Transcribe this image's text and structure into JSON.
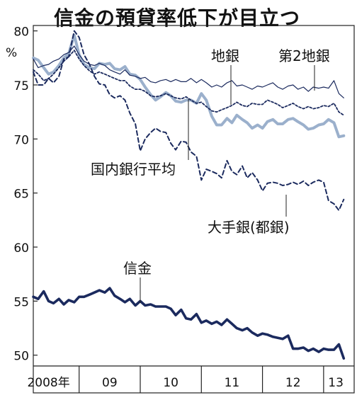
{
  "chart_data": {
    "type": "line",
    "title": "信金の預貸率低下が目立つ",
    "unit": "%",
    "ylim": [
      49,
      80.5
    ],
    "yticks": [
      50,
      55,
      60,
      65,
      70,
      75,
      80
    ],
    "x_start": 2008.25,
    "x_end": 2013.5,
    "x_ticks": [
      {
        "label": "2008年",
        "center": 2008.5
      },
      {
        "label": "09",
        "center": 2009.5
      },
      {
        "label": "10",
        "center": 2010.5
      },
      {
        "label": "11",
        "center": 2011.5
      },
      {
        "label": "12",
        "center": 2012.5
      },
      {
        "label": "13",
        "center": 2013.2
      }
    ],
    "year_boundaries": [
      2009,
      2010,
      2011,
      2012,
      2013
    ],
    "labels": {
      "shinkin": "信金",
      "chigin": "地銀",
      "daini_chigin": "第2地銀",
      "kokunai": "国内銀行平均",
      "ote": "大手銀(都銀)"
    },
    "series": [
      {
        "name": "国内銀行平均",
        "color": "#9bb0cc",
        "style": "thick",
        "x": [
          2008.25,
          2008.33,
          2008.42,
          2008.5,
          2008.58,
          2008.67,
          2008.75,
          2008.83,
          2008.92,
          2009.0,
          2009.08,
          2009.17,
          2009.25,
          2009.33,
          2009.42,
          2009.5,
          2009.58,
          2009.67,
          2009.75,
          2009.83,
          2009.92,
          2010.0,
          2010.08,
          2010.17,
          2010.25,
          2010.33,
          2010.42,
          2010.5,
          2010.58,
          2010.67,
          2010.75,
          2010.83,
          2010.92,
          2011.0,
          2011.08,
          2011.17,
          2011.25,
          2011.33,
          2011.42,
          2011.5,
          2011.58,
          2011.67,
          2011.75,
          2011.83,
          2011.92,
          2012.0,
          2012.08,
          2012.17,
          2012.25,
          2012.33,
          2012.42,
          2012.5,
          2012.58,
          2012.67,
          2012.75,
          2012.83,
          2012.92,
          2013.0,
          2013.08,
          2013.17,
          2013.25,
          2013.33
        ],
        "values": [
          77.5,
          77.3,
          76.6,
          76.0,
          76.2,
          76.8,
          77.5,
          77.9,
          79.6,
          77.8,
          76.9,
          76.6,
          76.5,
          77.0,
          76.9,
          77.0,
          76.5,
          76.4,
          76.7,
          76.0,
          75.9,
          75.5,
          74.8,
          74.1,
          73.6,
          73.9,
          74.3,
          74.0,
          73.5,
          73.4,
          73.6,
          73.6,
          73.3,
          74.2,
          73.6,
          72.1,
          71.3,
          71.3,
          71.9,
          71.5,
          72.2,
          71.8,
          71.5,
          71.0,
          71.3,
          71.0,
          71.6,
          71.8,
          71.4,
          71.4,
          71.8,
          71.9,
          71.6,
          71.3,
          70.9,
          71.0,
          71.3,
          71.4,
          71.8,
          71.5,
          70.2,
          70.3
        ]
      },
      {
        "name": "地銀",
        "color": "#1b2a5e",
        "style": "thin",
        "x": [
          2008.25,
          2008.33,
          2008.42,
          2008.5,
          2008.58,
          2008.67,
          2008.75,
          2008.83,
          2008.92,
          2009.0,
          2009.08,
          2009.17,
          2009.25,
          2009.33,
          2009.42,
          2009.5,
          2009.58,
          2009.67,
          2009.75,
          2009.83,
          2009.92,
          2010.0,
          2010.08,
          2010.17,
          2010.25,
          2010.33,
          2010.42,
          2010.5,
          2010.58,
          2010.67,
          2010.75,
          2010.83,
          2010.92,
          2011.0,
          2011.08,
          2011.17,
          2011.25,
          2011.33,
          2011.42,
          2011.5,
          2011.58,
          2011.67,
          2011.75,
          2011.83,
          2011.92,
          2012.0,
          2012.08,
          2012.17,
          2012.25,
          2012.33,
          2012.42,
          2012.5,
          2012.58,
          2012.67,
          2012.75,
          2012.83,
          2012.92,
          2013.0,
          2013.08,
          2013.17,
          2013.25,
          2013.33
        ],
        "values": [
          77.4,
          76.6,
          76.8,
          76.9,
          77.2,
          77.4,
          77.8,
          78.0,
          78.6,
          77.8,
          77.2,
          76.9,
          76.8,
          77.0,
          76.8,
          76.4,
          76.2,
          76.0,
          76.4,
          75.9,
          75.8,
          75.6,
          75.7,
          75.3,
          75.2,
          75.4,
          75.5,
          75.3,
          75.5,
          75.3,
          75.3,
          75.6,
          75.2,
          75.5,
          75.2,
          74.8,
          75.0,
          74.8,
          75.2,
          75.4,
          74.9,
          75.0,
          74.8,
          74.6,
          74.9,
          74.8,
          75.0,
          75.2,
          74.8,
          74.6,
          74.9,
          75.0,
          74.6,
          74.8,
          74.4,
          74.8,
          74.7,
          74.8,
          74.7,
          75.4,
          74.2,
          73.8
        ]
      },
      {
        "name": "第2地銀",
        "color": "#1b2a5e",
        "style": "dotted",
        "x": [
          2008.25,
          2008.33,
          2008.42,
          2008.5,
          2008.58,
          2008.67,
          2008.75,
          2008.83,
          2008.92,
          2009.0,
          2009.08,
          2009.17,
          2009.25,
          2009.33,
          2009.42,
          2009.5,
          2009.58,
          2009.67,
          2009.75,
          2009.83,
          2009.92,
          2010.0,
          2010.08,
          2010.17,
          2010.25,
          2010.33,
          2010.42,
          2010.5,
          2010.58,
          2010.67,
          2010.75,
          2010.83,
          2010.92,
          2011.0,
          2011.08,
          2011.17,
          2011.25,
          2011.33,
          2011.42,
          2011.5,
          2011.58,
          2011.67,
          2011.75,
          2011.83,
          2011.92,
          2012.0,
          2012.08,
          2012.17,
          2012.25,
          2012.33,
          2012.42,
          2012.5,
          2012.58,
          2012.67,
          2012.75,
          2012.83,
          2012.92,
          2013.0,
          2013.08,
          2013.17,
          2013.25,
          2013.33
        ],
        "values": [
          76.4,
          76.0,
          75.4,
          75.6,
          76.0,
          76.6,
          77.2,
          77.6,
          78.2,
          77.4,
          76.8,
          76.3,
          76.0,
          76.2,
          76.0,
          75.8,
          75.6,
          75.4,
          75.4,
          74.9,
          74.6,
          74.6,
          74.4,
          74.0,
          73.9,
          74.0,
          74.2,
          74.0,
          73.8,
          73.7,
          73.9,
          73.6,
          73.3,
          73.4,
          73.0,
          72.6,
          72.5,
          72.7,
          72.9,
          73.1,
          73.4,
          73.1,
          73.0,
          73.3,
          73.2,
          73.2,
          73.6,
          73.4,
          73.2,
          72.9,
          73.1,
          73.3,
          73.0,
          72.8,
          73.0,
          72.8,
          72.9,
          73.1,
          73.0,
          73.3,
          72.5,
          72.2
        ]
      },
      {
        "name": "大手銀(都銀)",
        "color": "#1b2a5e",
        "style": "dashed",
        "x": [
          2008.25,
          2008.33,
          2008.42,
          2008.5,
          2008.58,
          2008.67,
          2008.75,
          2008.83,
          2008.92,
          2009.0,
          2009.08,
          2009.17,
          2009.25,
          2009.33,
          2009.42,
          2009.5,
          2009.58,
          2009.67,
          2009.75,
          2009.83,
          2009.92,
          2010.0,
          2010.08,
          2010.17,
          2010.25,
          2010.33,
          2010.42,
          2010.5,
          2010.58,
          2010.67,
          2010.75,
          2010.83,
          2010.92,
          2011.0,
          2011.08,
          2011.17,
          2011.25,
          2011.33,
          2011.42,
          2011.5,
          2011.58,
          2011.67,
          2011.75,
          2011.83,
          2011.92,
          2012.0,
          2012.08,
          2012.17,
          2012.25,
          2012.33,
          2012.42,
          2012.5,
          2012.58,
          2012.67,
          2012.75,
          2012.83,
          2012.92,
          2013.0,
          2013.08,
          2013.17,
          2013.25,
          2013.33
        ],
        "values": [
          76.2,
          75.0,
          75.0,
          75.6,
          75.2,
          75.8,
          77.4,
          77.6,
          80.0,
          79.4,
          77.8,
          76.9,
          75.8,
          75.1,
          75.0,
          74.1,
          73.8,
          74.0,
          73.6,
          72.4,
          71.4,
          68.9,
          70.0,
          70.6,
          71.0,
          70.7,
          70.6,
          69.6,
          69.0,
          69.8,
          69.7,
          68.8,
          68.4,
          66.2,
          67.2,
          67.0,
          66.8,
          66.4,
          68.0,
          67.0,
          66.7,
          67.5,
          66.4,
          66.9,
          66.2,
          65.2,
          65.9,
          66.0,
          65.9,
          65.7,
          65.8,
          66.0,
          65.8,
          66.1,
          65.7,
          66.0,
          66.2,
          66.0,
          64.3,
          64.0,
          63.4,
          64.4
        ]
      },
      {
        "name": "信金",
        "color": "#1b2a5e",
        "style": "bold",
        "x": [
          2008.25,
          2008.33,
          2008.42,
          2008.5,
          2008.58,
          2008.67,
          2008.75,
          2008.83,
          2008.92,
          2009.0,
          2009.08,
          2009.17,
          2009.25,
          2009.33,
          2009.42,
          2009.5,
          2009.58,
          2009.67,
          2009.75,
          2009.83,
          2009.92,
          2010.0,
          2010.08,
          2010.17,
          2010.25,
          2010.33,
          2010.42,
          2010.5,
          2010.58,
          2010.67,
          2010.75,
          2010.83,
          2010.92,
          2011.0,
          2011.08,
          2011.17,
          2011.25,
          2011.33,
          2011.42,
          2011.5,
          2011.58,
          2011.67,
          2011.75,
          2011.83,
          2011.92,
          2012.0,
          2012.08,
          2012.17,
          2012.25,
          2012.33,
          2012.42,
          2012.5,
          2012.58,
          2012.67,
          2012.75,
          2012.83,
          2012.92,
          2013.0,
          2013.08,
          2013.17,
          2013.25,
          2013.33
        ],
        "values": [
          55.4,
          55.2,
          55.9,
          55.0,
          54.8,
          55.2,
          54.7,
          55.1,
          54.9,
          55.4,
          55.4,
          55.6,
          55.8,
          56.0,
          55.8,
          56.2,
          55.5,
          55.2,
          54.9,
          55.2,
          54.6,
          55.0,
          54.6,
          54.7,
          54.5,
          54.5,
          54.5,
          54.3,
          53.7,
          54.2,
          53.4,
          53.3,
          53.8,
          53.0,
          53.2,
          52.9,
          53.1,
          52.8,
          53.3,
          52.9,
          52.5,
          52.3,
          52.5,
          52.1,
          51.8,
          52.0,
          51.9,
          51.7,
          51.6,
          51.5,
          51.8,
          50.6,
          50.6,
          50.7,
          50.4,
          50.6,
          50.3,
          50.6,
          50.5,
          50.5,
          51.0,
          49.7
        ]
      }
    ]
  }
}
